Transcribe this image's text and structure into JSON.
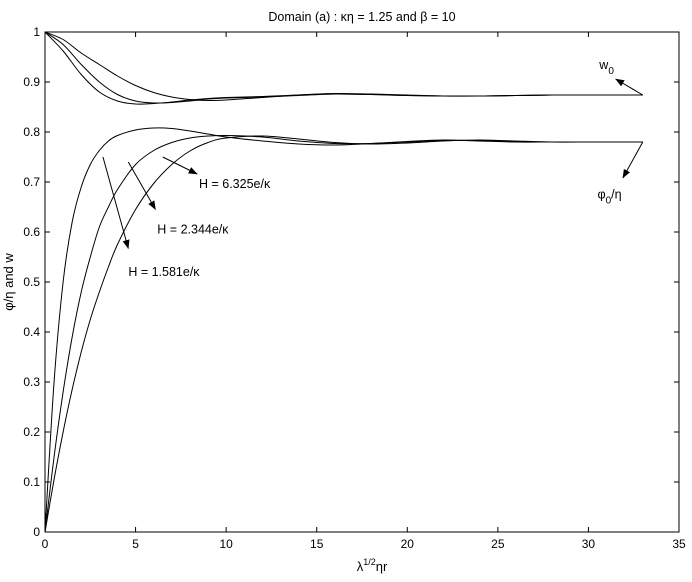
{
  "chart_data": {
    "type": "line",
    "title": "Domain (a) : κη = 1.25 and β = 10",
    "xlabel_base": "λ",
    "xlabel_sup": "1/2",
    "xlabel_rest": "ηr",
    "ylabel": "φ/η and w",
    "xlim": [
      0,
      35
    ],
    "ylim": [
      0,
      1
    ],
    "xticks": [
      "0",
      "5",
      "10",
      "15",
      "20",
      "25",
      "30",
      "35"
    ],
    "yticks": [
      "0",
      "0.1",
      "0.2",
      "0.3",
      "0.4",
      "0.5",
      "0.6",
      "0.7",
      "0.8",
      "0.9",
      "1"
    ],
    "grid": false,
    "series": [
      {
        "group": "w",
        "x": [
          0,
          1,
          2,
          3,
          4,
          5,
          6,
          7,
          8,
          9,
          10,
          12,
          14,
          16,
          18,
          20,
          22,
          24,
          26,
          28,
          30,
          31.5,
          33
        ],
        "y": [
          1.0,
          0.985,
          0.958,
          0.935,
          0.912,
          0.893,
          0.879,
          0.87,
          0.865,
          0.863,
          0.864,
          0.869,
          0.874,
          0.877,
          0.876,
          0.874,
          0.872,
          0.872,
          0.873,
          0.874,
          0.874,
          0.874,
          0.874
        ]
      },
      {
        "group": "w",
        "x": [
          0,
          1,
          2,
          3,
          4,
          5,
          6,
          7,
          8,
          9,
          10,
          12,
          14,
          16,
          18,
          20,
          22,
          24,
          26,
          28,
          30,
          31.5,
          33
        ],
        "y": [
          1.0,
          0.975,
          0.935,
          0.9,
          0.875,
          0.862,
          0.858,
          0.859,
          0.862,
          0.866,
          0.868,
          0.87,
          0.873,
          0.876,
          0.875,
          0.873,
          0.872,
          0.872,
          0.873,
          0.874,
          0.874,
          0.874,
          0.874
        ]
      },
      {
        "group": "w",
        "x": [
          0,
          1,
          2,
          3,
          4,
          5,
          6,
          7,
          8,
          9,
          10,
          12,
          14,
          16,
          18,
          20,
          22,
          24,
          26,
          28,
          30,
          31.5,
          33
        ],
        "y": [
          1.0,
          0.962,
          0.915,
          0.88,
          0.862,
          0.856,
          0.857,
          0.86,
          0.864,
          0.867,
          0.869,
          0.871,
          0.874,
          0.876,
          0.875,
          0.873,
          0.872,
          0.872,
          0.873,
          0.874,
          0.874,
          0.874,
          0.874
        ]
      },
      {
        "group": "phi",
        "x": [
          0,
          0.5,
          1,
          1.5,
          2,
          2.5,
          3,
          3.5,
          4,
          5,
          6,
          7,
          8,
          9,
          10,
          12,
          14,
          16,
          18,
          20,
          22,
          24,
          26,
          28,
          30,
          31.5,
          33
        ],
        "y": [
          0,
          0.3,
          0.5,
          0.62,
          0.69,
          0.735,
          0.763,
          0.782,
          0.793,
          0.804,
          0.808,
          0.807,
          0.802,
          0.796,
          0.79,
          0.782,
          0.776,
          0.774,
          0.777,
          0.781,
          0.784,
          0.782,
          0.78,
          0.78,
          0.78,
          0.78,
          0.78
        ]
      },
      {
        "group": "phi",
        "x": [
          0,
          0.5,
          1,
          1.5,
          2,
          2.5,
          3,
          3.5,
          4,
          5,
          6,
          7,
          8,
          9,
          10,
          12,
          14,
          16,
          18,
          20,
          22,
          24,
          26,
          28,
          30,
          31.5,
          33
        ],
        "y": [
          0,
          0.15,
          0.28,
          0.39,
          0.48,
          0.55,
          0.61,
          0.65,
          0.685,
          0.735,
          0.763,
          0.779,
          0.788,
          0.792,
          0.793,
          0.79,
          0.782,
          0.777,
          0.777,
          0.78,
          0.783,
          0.783,
          0.781,
          0.78,
          0.78,
          0.78,
          0.78
        ]
      },
      {
        "group": "phi",
        "x": [
          0,
          0.5,
          1,
          1.5,
          2,
          2.5,
          3,
          3.5,
          4,
          5,
          6,
          7,
          8,
          9,
          10,
          12,
          14,
          16,
          18,
          20,
          22,
          24,
          26,
          28,
          30,
          31.5,
          33
        ],
        "y": [
          0,
          0.105,
          0.2,
          0.285,
          0.36,
          0.425,
          0.48,
          0.53,
          0.575,
          0.645,
          0.697,
          0.735,
          0.762,
          0.779,
          0.788,
          0.792,
          0.786,
          0.779,
          0.776,
          0.778,
          0.782,
          0.784,
          0.782,
          0.78,
          0.78,
          0.78,
          0.78
        ]
      }
    ],
    "annotations": [
      {
        "id": "w0",
        "label_base": "w",
        "label_sub": "0",
        "tail": [
          33,
          0.874
        ],
        "head": [
          31.5,
          0.906
        ],
        "text_at": [
          30.6,
          0.926
        ],
        "anchor": "start"
      },
      {
        "id": "phi0",
        "label_base": "φ",
        "label_sub": "0",
        "label_rest": "/η",
        "tail": [
          33,
          0.78
        ],
        "head": [
          31.9,
          0.708
        ],
        "text_at": [
          30.5,
          0.667
        ],
        "anchor": "start"
      },
      {
        "id": "H1",
        "label": "H = 6.325e/κ",
        "tail": [
          6.5,
          0.75
        ],
        "head": [
          8.4,
          0.716
        ],
        "text_at": [
          8.5,
          0.688
        ],
        "anchor": "start"
      },
      {
        "id": "H2",
        "label": "H = 2.344e/κ",
        "tail": [
          4.6,
          0.74
        ],
        "head": [
          6.1,
          0.645
        ],
        "text_at": [
          6.2,
          0.597
        ],
        "anchor": "start"
      },
      {
        "id": "H3",
        "label": "H = 1.581e/κ",
        "tail": [
          3.2,
          0.75
        ],
        "head": [
          4.6,
          0.567
        ],
        "text_at": [
          4.6,
          0.512
        ],
        "anchor": "start"
      }
    ]
  }
}
